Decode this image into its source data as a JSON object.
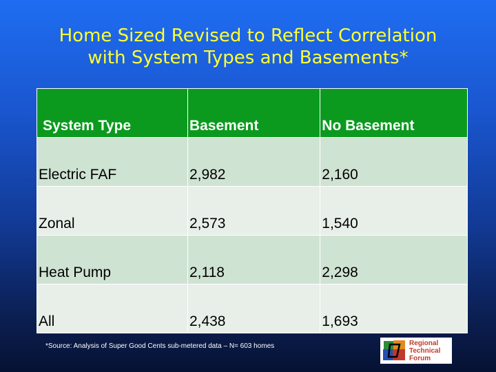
{
  "title": {
    "line1": "Home Sized Revised to Reflect Correlation",
    "line2": "with System Types and Basements*"
  },
  "table": {
    "headers": [
      "System Type",
      "Basement",
      "No Basement"
    ],
    "rows": [
      [
        "Electric FAF",
        "2,982",
        "2,160"
      ],
      [
        "Zonal",
        "2,573",
        "1,540"
      ],
      [
        "Heat Pump",
        "2,118",
        "2,298"
      ],
      [
        "All",
        "2,438",
        "1,693"
      ]
    ]
  },
  "footnote": "*Source: Analysis of Super Good Cents sub-metered data – N= 603 homes",
  "logo": {
    "line1": "Regional",
    "line2": "Technical",
    "line3": "Forum"
  }
}
